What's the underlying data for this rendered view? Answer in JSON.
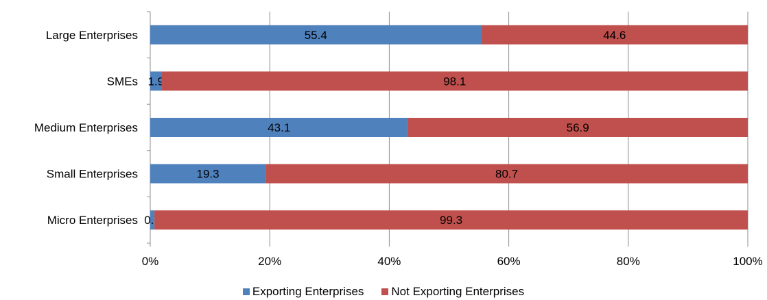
{
  "chart_data": {
    "type": "bar",
    "orientation": "horizontal",
    "stacked": "percent",
    "categories": [
      "Large Enterprises",
      "SMEs",
      "Medium Enterprises",
      "Small Enterprises",
      "Micro Enterprises"
    ],
    "series": [
      {
        "name": "Exporting Enterprises",
        "color": "#4F81BD",
        "values": [
          55.4,
          1.9,
          43.1,
          19.3,
          0.7
        ],
        "labels": [
          "55.4",
          "1.9",
          "43.1",
          "19.3",
          "0.7"
        ]
      },
      {
        "name": "Not Exporting Enterprises",
        "color": "#C0504D",
        "values": [
          44.6,
          98.1,
          56.9,
          80.7,
          99.3
        ],
        "labels": [
          "44.6",
          "98.1",
          "56.9",
          "80.7",
          "99.3"
        ]
      }
    ],
    "xlim": [
      0,
      100
    ],
    "xticks": [
      "0%",
      "20%",
      "40%",
      "60%",
      "80%",
      "100%"
    ],
    "grid": "vertical",
    "legend": "bottom"
  }
}
